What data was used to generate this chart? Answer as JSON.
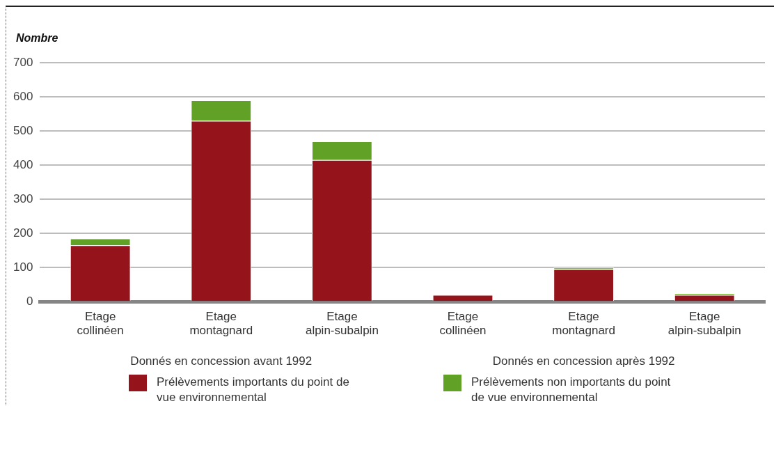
{
  "chart_data": {
    "type": "bar",
    "stacked": true,
    "ylabel": "Nombre",
    "categories": [
      "Etage collinéen",
      "Etage montagnard",
      "Etage alpin-subalpin",
      "Etage collinéen",
      "Etage montagnard",
      "Etage alpin-subalpin"
    ],
    "series": [
      {
        "name": "Prélèvements importants du point de vue environnemental",
        "color": "#95141c",
        "values": [
          165,
          530,
          415,
          20,
          95,
          20
        ]
      },
      {
        "name": "Prélèvements non importants du point de vue environnemental",
        "color": "#61a125",
        "values": [
          20,
          60,
          55,
          0,
          5,
          5
        ]
      }
    ],
    "ylim": [
      0,
      700
    ],
    "yticks": [
      0,
      100,
      200,
      300,
      400,
      500,
      600,
      700
    ],
    "grid": "y",
    "legend": "bottom",
    "annotations": [
      "Donnés en concession avant 1992",
      "Donnés en concession après 1992"
    ]
  }
}
